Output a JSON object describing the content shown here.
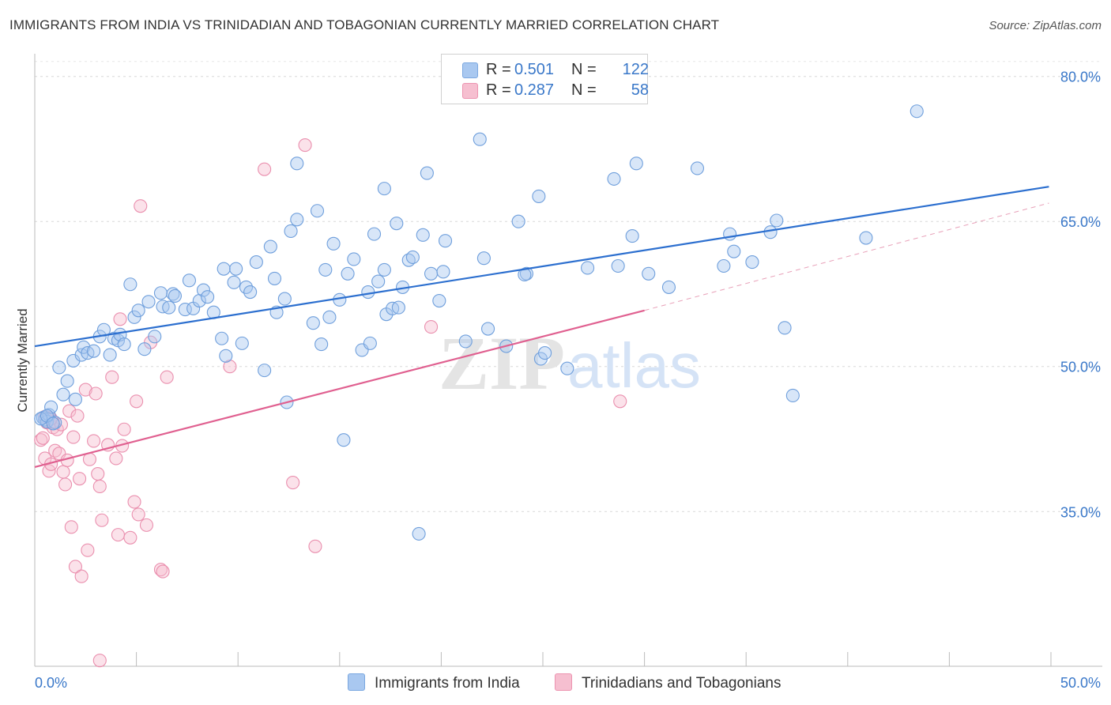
{
  "title": "IMMIGRANTS FROM INDIA VS TRINIDADIAN AND TOBAGONIAN CURRENTLY MARRIED CORRELATION CHART",
  "source": "Source: ZipAtlas.com",
  "watermark": {
    "zip": "ZIP",
    "atlas": "atlas"
  },
  "legend": {
    "r_label": "R =",
    "n_label": "N =",
    "rows": [
      {
        "r": "0.501",
        "n": "122",
        "color": "#a9c8f0",
        "border": "#7aa7e0"
      },
      {
        "r": "0.287",
        "n": "58",
        "color": "#f6bfd0",
        "border": "#ec93b0"
      }
    ]
  },
  "bottom_legend": [
    "Immigrants from India",
    "Trinidadians and Tobagonians"
  ],
  "colors": {
    "blue_fill": "#a9c8f0",
    "blue_line": "#2c6fcf",
    "pink_fill": "#f6bfd0",
    "pink_line": "#e06090",
    "axis_text": "#3a78c9"
  },
  "chart_data": {
    "type": "scatter",
    "title": "IMMIGRANTS FROM INDIA VS TRINIDADIAN AND TOBAGONIAN CURRENTLY MARRIED CORRELATION CHART",
    "xlabel": "",
    "ylabel": "Currently Married",
    "xlim": [
      0,
      50
    ],
    "ylim": [
      19,
      83
    ],
    "x_tick_labels": [
      "0.0%",
      "50.0%"
    ],
    "y_ticks": [
      35,
      50,
      65,
      80
    ],
    "y_tick_labels": [
      "35.0%",
      "50.0%",
      "65.0%",
      "80.0%"
    ],
    "grid": true,
    "series": [
      {
        "name": "Immigrants from India",
        "r": 0.501,
        "n": 122,
        "trend": {
          "x": [
            0,
            49.9
          ],
          "y": [
            52.1,
            68.6
          ]
        },
        "points": [
          [
            0.4,
            44.7
          ],
          [
            0.5,
            44.5
          ],
          [
            0.6,
            44.3
          ],
          [
            0.7,
            45.0
          ],
          [
            0.8,
            45.8
          ],
          [
            1.0,
            44.2
          ],
          [
            1.2,
            49.9
          ],
          [
            1.4,
            47.1
          ],
          [
            1.6,
            48.5
          ],
          [
            1.9,
            50.6
          ],
          [
            2.0,
            46.6
          ],
          [
            2.3,
            51.2
          ],
          [
            2.4,
            52.0
          ],
          [
            2.6,
            51.4
          ],
          [
            2.9,
            51.6
          ],
          [
            3.2,
            53.1
          ],
          [
            3.4,
            53.8
          ],
          [
            3.7,
            51.2
          ],
          [
            3.9,
            52.9
          ],
          [
            4.1,
            52.7
          ],
          [
            4.2,
            53.3
          ],
          [
            4.4,
            52.3
          ],
          [
            4.7,
            58.5
          ],
          [
            4.9,
            55.1
          ],
          [
            5.1,
            55.8
          ],
          [
            5.4,
            51.8
          ],
          [
            5.6,
            56.7
          ],
          [
            5.9,
            53.1
          ],
          [
            6.2,
            57.6
          ],
          [
            6.3,
            56.2
          ],
          [
            6.6,
            56.1
          ],
          [
            6.8,
            57.5
          ],
          [
            6.9,
            57.3
          ],
          [
            7.4,
            55.9
          ],
          [
            7.6,
            58.9
          ],
          [
            7.8,
            56.0
          ],
          [
            8.1,
            56.8
          ],
          [
            8.3,
            57.9
          ],
          [
            8.5,
            57.2
          ],
          [
            8.8,
            55.6
          ],
          [
            9.2,
            52.9
          ],
          [
            9.3,
            60.1
          ],
          [
            9.4,
            51.1
          ],
          [
            9.8,
            58.7
          ],
          [
            9.9,
            60.1
          ],
          [
            10.2,
            52.4
          ],
          [
            10.4,
            58.2
          ],
          [
            10.6,
            57.7
          ],
          [
            10.9,
            60.8
          ],
          [
            11.3,
            49.6
          ],
          [
            11.6,
            62.4
          ],
          [
            11.8,
            59.1
          ],
          [
            11.9,
            55.6
          ],
          [
            12.3,
            57.0
          ],
          [
            12.4,
            46.3
          ],
          [
            12.6,
            64.0
          ],
          [
            12.9,
            65.2
          ],
          [
            12.9,
            71.0
          ],
          [
            13.7,
            54.5
          ],
          [
            13.9,
            66.1
          ],
          [
            14.1,
            52.3
          ],
          [
            14.3,
            60.0
          ],
          [
            14.5,
            55.1
          ],
          [
            14.7,
            62.7
          ],
          [
            15.0,
            56.9
          ],
          [
            15.2,
            42.4
          ],
          [
            15.4,
            59.6
          ],
          [
            15.7,
            61.1
          ],
          [
            16.1,
            51.7
          ],
          [
            16.4,
            57.7
          ],
          [
            16.5,
            52.4
          ],
          [
            16.7,
            63.7
          ],
          [
            16.9,
            58.8
          ],
          [
            17.2,
            60.0
          ],
          [
            17.3,
            55.4
          ],
          [
            17.6,
            56.0
          ],
          [
            17.8,
            64.8
          ],
          [
            17.9,
            56.1
          ],
          [
            17.2,
            68.4
          ],
          [
            18.1,
            58.2
          ],
          [
            18.4,
            61.0
          ],
          [
            18.6,
            61.3
          ],
          [
            18.9,
            32.7
          ],
          [
            19.1,
            63.6
          ],
          [
            19.3,
            70.0
          ],
          [
            19.5,
            59.6
          ],
          [
            19.9,
            56.8
          ],
          [
            20.1,
            59.8
          ],
          [
            20.2,
            63.0
          ],
          [
            21.2,
            52.6
          ],
          [
            21.9,
            73.5
          ],
          [
            22.1,
            61.2
          ],
          [
            22.3,
            53.9
          ],
          [
            23.2,
            52.1
          ],
          [
            23.8,
            65.0
          ],
          [
            24.2,
            59.6
          ],
          [
            24.1,
            59.5
          ],
          [
            24.8,
            67.6
          ],
          [
            24.9,
            50.8
          ],
          [
            25.1,
            51.4
          ],
          [
            26.2,
            49.8
          ],
          [
            27.2,
            60.2
          ],
          [
            28.5,
            69.4
          ],
          [
            28.7,
            60.4
          ],
          [
            29.4,
            63.5
          ],
          [
            29.6,
            71.0
          ],
          [
            30.2,
            59.6
          ],
          [
            31.2,
            58.2
          ],
          [
            32.6,
            70.5
          ],
          [
            33.9,
            60.4
          ],
          [
            34.2,
            63.7
          ],
          [
            34.4,
            61.9
          ],
          [
            35.3,
            60.8
          ],
          [
            36.2,
            63.9
          ],
          [
            36.5,
            65.1
          ],
          [
            36.9,
            54.0
          ],
          [
            37.3,
            47.0
          ],
          [
            40.9,
            63.3
          ],
          [
            43.4,
            76.4
          ],
          [
            0.3,
            44.6
          ],
          [
            0.6,
            44.9
          ],
          [
            0.9,
            44.1
          ]
        ]
      },
      {
        "name": "Trinidadians and Tobagonians",
        "r": 0.287,
        "n": 58,
        "trend": {
          "x": [
            0,
            30
          ],
          "y": [
            39.6,
            55.8
          ]
        },
        "trend_extension": {
          "x": [
            30,
            49.9
          ],
          "y": [
            55.8,
            66.9
          ]
        },
        "points": [
          [
            0.3,
            42.4
          ],
          [
            0.4,
            42.6
          ],
          [
            0.5,
            40.5
          ],
          [
            0.6,
            44.2
          ],
          [
            0.7,
            44.7
          ],
          [
            0.7,
            39.2
          ],
          [
            0.8,
            39.9
          ],
          [
            0.9,
            43.7
          ],
          [
            1.0,
            41.3
          ],
          [
            1.1,
            43.5
          ],
          [
            1.2,
            41.0
          ],
          [
            1.4,
            39.1
          ],
          [
            1.5,
            37.8
          ],
          [
            1.6,
            40.3
          ],
          [
            1.7,
            45.4
          ],
          [
            1.8,
            33.4
          ],
          [
            1.9,
            42.7
          ],
          [
            2.0,
            29.3
          ],
          [
            2.1,
            44.9
          ],
          [
            2.2,
            38.4
          ],
          [
            2.3,
            28.3
          ],
          [
            2.5,
            47.6
          ],
          [
            2.6,
            31.0
          ],
          [
            2.7,
            40.4
          ],
          [
            2.9,
            42.3
          ],
          [
            3.0,
            47.2
          ],
          [
            3.1,
            38.9
          ],
          [
            3.2,
            37.6
          ],
          [
            3.3,
            34.1
          ],
          [
            3.6,
            41.9
          ],
          [
            3.8,
            48.9
          ],
          [
            4.0,
            40.5
          ],
          [
            4.1,
            32.6
          ],
          [
            4.2,
            54.9
          ],
          [
            4.3,
            41.8
          ],
          [
            4.4,
            43.5
          ],
          [
            4.7,
            32.3
          ],
          [
            4.9,
            36.0
          ],
          [
            5.0,
            46.4
          ],
          [
            5.1,
            34.7
          ],
          [
            5.2,
            66.6
          ],
          [
            5.5,
            33.6
          ],
          [
            5.7,
            52.5
          ],
          [
            6.2,
            29.0
          ],
          [
            6.3,
            28.8
          ],
          [
            6.5,
            48.9
          ],
          [
            9.6,
            50.0
          ],
          [
            11.3,
            70.4
          ],
          [
            12.7,
            38.0
          ],
          [
            13.3,
            72.9
          ],
          [
            13.8,
            31.4
          ],
          [
            19.5,
            54.1
          ],
          [
            28.8,
            46.4
          ],
          [
            3.2,
            19.6
          ],
          [
            0.9,
            44.3
          ],
          [
            1.3,
            44.0
          ],
          [
            0.5,
            44.8
          ],
          [
            0.8,
            44.6
          ]
        ]
      }
    ]
  }
}
